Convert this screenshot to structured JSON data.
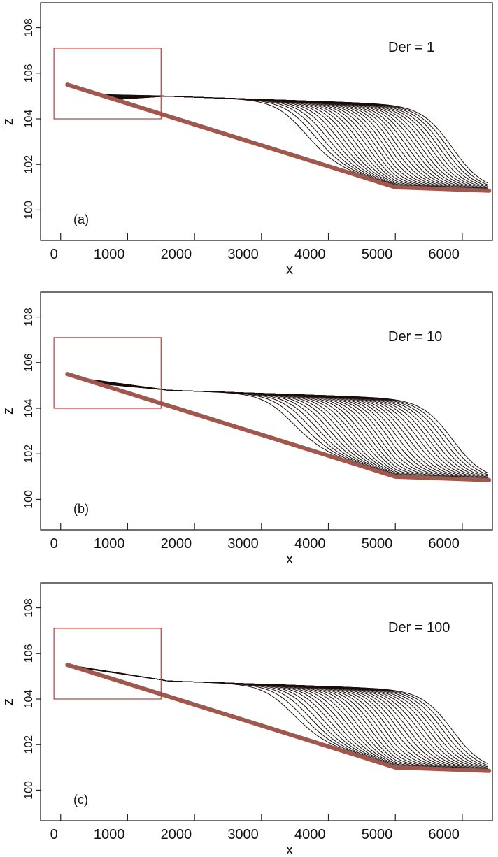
{
  "chart_data": [
    {
      "type": "line",
      "panel_label": "(a)",
      "annotation": "Der = 1",
      "xlabel": "x",
      "ylabel": "z",
      "xlim": [
        -300,
        6450
      ],
      "ylim": [
        99.4,
        108.6
      ],
      "xticks": [
        0,
        1000,
        2000,
        3000,
        4000,
        5000,
        6000
      ],
      "yticks": [
        100,
        102,
        104,
        106,
        108
      ],
      "legend": "none",
      "grid": false,
      "series": [
        {
          "color": "#a0584e",
          "x": [
            100,
            5000,
            6400
          ],
          "y": [
            105.5,
            101.0,
            100.85
          ]
        }
      ],
      "curve_family": {
        "count": 30,
        "color": "#1a0d0a",
        "upstream_z_range": [
          104.7,
          105.1
        ],
        "front_x_range": [
          3600,
          5850
        ],
        "plateau_z": 105.0
      },
      "highlight_box": {
        "x": [
          -100,
          1500
        ],
        "y": [
          104.0,
          107.1
        ],
        "color": "#c0393b"
      }
    },
    {
      "type": "line",
      "panel_label": "(b)",
      "annotation": "Der = 10",
      "xlabel": "x",
      "ylabel": "z",
      "xlim": [
        -300,
        6450
      ],
      "ylim": [
        99.4,
        108.6
      ],
      "xticks": [
        0,
        1000,
        2000,
        3000,
        4000,
        5000,
        6000
      ],
      "yticks": [
        100,
        102,
        104,
        106,
        108
      ],
      "legend": "none",
      "grid": false,
      "series": [
        {
          "color": "#a0584e",
          "x": [
            100,
            5000,
            6400
          ],
          "y": [
            105.5,
            101.0,
            100.85
          ]
        }
      ],
      "curve_family": {
        "count": 30,
        "color": "#1a0d0a",
        "upstream_z_range": [
          105.2,
          105.4
        ],
        "front_x_range": [
          3400,
          5850
        ],
        "plateau_z": 104.8
      },
      "highlight_box": {
        "x": [
          -100,
          1500
        ],
        "y": [
          104.0,
          107.1
        ],
        "color": "#c0393b"
      }
    },
    {
      "type": "line",
      "panel_label": "(c)",
      "annotation": "Der = 100",
      "xlabel": "x",
      "ylabel": "z",
      "xlim": [
        -300,
        6450
      ],
      "ylim": [
        99.4,
        108.6
      ],
      "xticks": [
        0,
        1000,
        2000,
        3000,
        4000,
        5000,
        6000
      ],
      "yticks": [
        100,
        102,
        104,
        106,
        108
      ],
      "legend": "none",
      "grid": false,
      "series": [
        {
          "color": "#a0584e",
          "x": [
            100,
            5000,
            6400
          ],
          "y": [
            105.5,
            101.0,
            100.85
          ]
        }
      ],
      "curve_family": {
        "count": 30,
        "color": "#1a0d0a",
        "upstream_z_range": [
          105.45,
          105.5
        ],
        "front_x_range": [
          3400,
          5850
        ],
        "plateau_z": 104.8
      },
      "highlight_box": {
        "x": [
          -100,
          1500
        ],
        "y": [
          104.0,
          107.1
        ],
        "color": "#c0393b"
      }
    }
  ]
}
